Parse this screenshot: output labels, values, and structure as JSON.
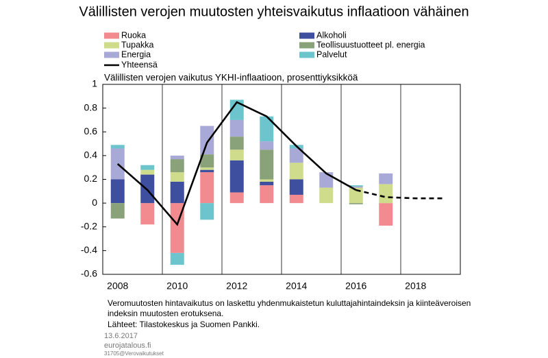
{
  "chart_data": {
    "type": "bar",
    "title": "Välillisten verojen muutosten yhteisvaikutus inflaatioon vähäinen",
    "subtitle": "Välillisten verojen vaikutus YKHI-inflaatioon, prosenttiyksikköä",
    "categories": [
      "2008",
      null,
      "2010",
      null,
      "2012",
      null,
      "2014",
      null,
      "2016",
      null,
      "2018",
      null
    ],
    "series": [
      {
        "name": "Ruoka",
        "color": "#f28b8f",
        "values": [
          0,
          -0.18,
          -0.42,
          0.26,
          0.09,
          0.15,
          0.07,
          0,
          0,
          -0.19,
          0,
          0
        ]
      },
      {
        "name": "Alkoholi",
        "color": "#3f4fa0",
        "values": [
          0.2,
          0.24,
          0.18,
          0.02,
          0.27,
          0.03,
          0.13,
          0,
          0,
          0,
          0,
          0
        ]
      },
      {
        "name": "Tupakka",
        "color": "#cfdc8c",
        "values": [
          0,
          0.04,
          0.08,
          0.02,
          0.09,
          0.02,
          0.14,
          0.13,
          0.13,
          0.16,
          0,
          0
        ]
      },
      {
        "name": "Teollisuustuotteet pl. energia",
        "color": "#8aa27a",
        "values": [
          -0.13,
          0,
          0.11,
          0.11,
          0.11,
          0.25,
          0,
          0,
          -0.01,
          0,
          0,
          0
        ]
      },
      {
        "name": "Energia",
        "color": "#a9a9d8",
        "values": [
          0.26,
          0,
          0.03,
          0.24,
          0.14,
          0.07,
          0.12,
          0.13,
          0.01,
          0.09,
          0,
          0
        ]
      },
      {
        "name": "Palvelut",
        "color": "#6cc4cc",
        "values": [
          0.03,
          0.04,
          -0.1,
          -0.14,
          0.17,
          0.21,
          0.03,
          0,
          0.01,
          0,
          0,
          0
        ]
      },
      {
        "name": "Yhteensä",
        "color": "#000000",
        "type": "line",
        "dashed_from": 8,
        "values": [
          0.33,
          0.11,
          -0.18,
          0.51,
          0.85,
          0.73,
          0.48,
          0.25,
          0.11,
          0.05,
          0.04,
          0.04
        ]
      }
    ],
    "ylim": [
      -0.6,
      1
    ],
    "yticks": [
      -0.6,
      -0.4,
      -0.2,
      0,
      0.2,
      0.4,
      0.6,
      0.8,
      1
    ],
    "notes": [
      "Veromuutosten hintavaikutus on laskettu yhdenmukaistetun kuluttajahintaindeksin ja kiinteäveroisen",
      "indeksin muutosten erotuksena.",
      "Lähteet: Tilastokeskus ja Suomen Pankki."
    ],
    "footer": [
      "13.6.2017",
      "eurojatalous.fi",
      "31705@Verovaikutukset"
    ]
  }
}
